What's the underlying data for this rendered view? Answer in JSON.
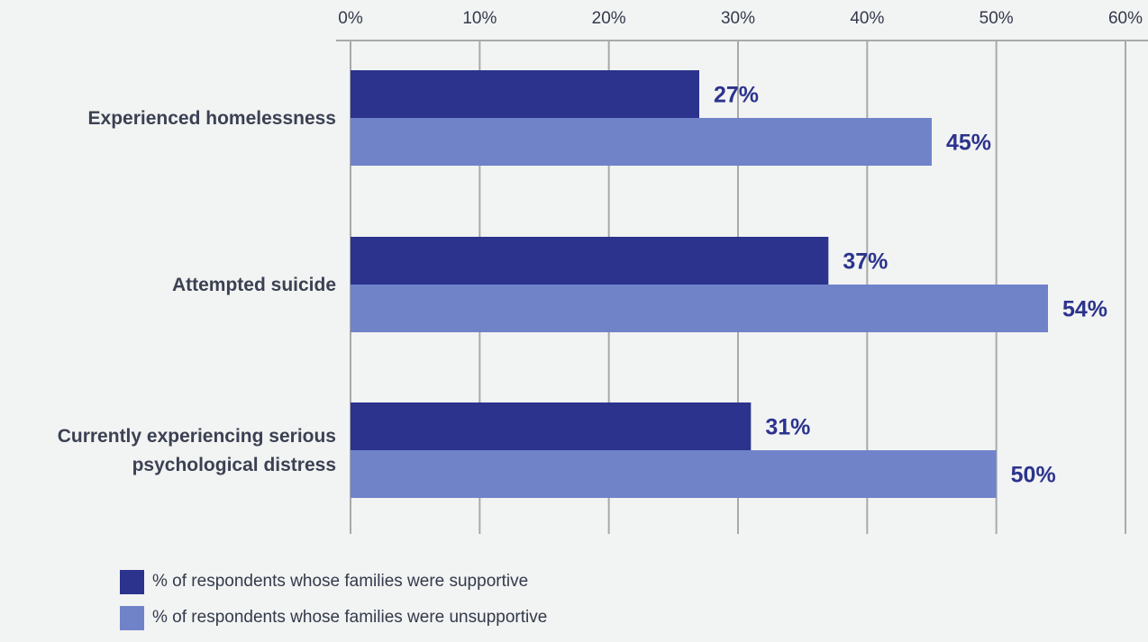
{
  "chart_data": {
    "type": "bar",
    "orientation": "horizontal",
    "categories": [
      [
        "Experienced homelessness"
      ],
      [
        "Attempted suicide"
      ],
      [
        "Currently experiencing serious",
        "psychological distress"
      ]
    ],
    "series": [
      {
        "name": "% of respondents whose families were supportive",
        "color": "#2b338d",
        "values": [
          27,
          37,
          31
        ],
        "labels": [
          "27%",
          "37%",
          "31%"
        ]
      },
      {
        "name": "% of respondents whose families were unsupportive",
        "color": "#7083c9",
        "values": [
          45,
          54,
          50
        ],
        "labels": [
          "45%",
          "54%",
          "50%"
        ]
      }
    ],
    "xlim": [
      0,
      60
    ],
    "xticks": [
      "0%",
      "10%",
      "20%",
      "30%",
      "40%",
      "50%",
      "60%"
    ],
    "x_axis_position": "top",
    "grid": "vertical",
    "legend_position": "bottom-left",
    "value_label_color": "#2b338d",
    "gridline_color": "#a9a9a9"
  }
}
